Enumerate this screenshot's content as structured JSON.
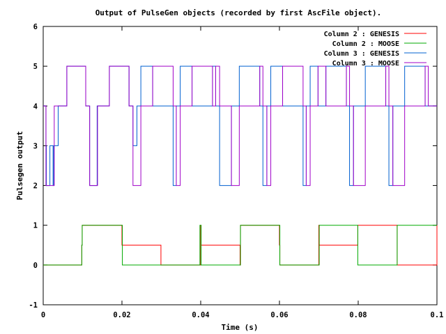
{
  "chart_data": {
    "type": "line",
    "title": "Output of PulseGen objects (recorded by first AscFile object).",
    "xlabel": "Time (s)",
    "ylabel": "Pulsegen output",
    "xlim": [
      0,
      0.1
    ],
    "ylim": [
      -1,
      6
    ],
    "xticks": [
      0,
      0.02,
      0.04,
      0.06,
      0.08,
      0.1
    ],
    "xtick_labels": [
      "0",
      "0.02",
      "0.04",
      "0.06",
      "0.08",
      "0.1"
    ],
    "yticks": [
      -1,
      0,
      1,
      2,
      3,
      4,
      5,
      6
    ],
    "ytick_labels": [
      "-1",
      "0",
      "1",
      "2",
      "3",
      "4",
      "5",
      "6"
    ],
    "grid": false,
    "legend_position": "top-right",
    "series": [
      {
        "name": "Column 2 : GENESIS",
        "color": "#ff0000",
        "step": true,
        "x": [
          0,
          0.0098,
          0.0099,
          0.0199,
          0.02,
          0.0299,
          0.04,
          0.0401,
          0.05,
          0.0501,
          0.06,
          0.0601,
          0.07,
          0.0701,
          0.0799,
          0.0899,
          0.1
        ],
        "y": [
          0,
          0.5,
          1,
          1,
          0.5,
          0,
          1,
          0.5,
          0,
          1,
          0.5,
          0,
          1,
          0.5,
          1,
          0,
          1
        ]
      },
      {
        "name": "Column 2 : MOOSE",
        "color": "#00aa00",
        "step": true,
        "x": [
          0,
          0.0098,
          0.0099,
          0.0199,
          0.0201,
          0.0299,
          0.0398,
          0.0401,
          0.0498,
          0.0501,
          0.0598,
          0.0601,
          0.0698,
          0.0701,
          0.0799,
          0.0899,
          0.1
        ],
        "y": [
          0,
          0.5,
          1,
          1,
          0,
          0,
          1,
          0,
          0,
          1,
          1,
          0,
          0,
          1,
          0,
          1,
          1
        ]
      },
      {
        "name": "Column 3 : GENESIS",
        "color": "#0060d0",
        "step": true,
        "x": [
          0,
          0.0007,
          0.0008,
          0.0017,
          0.0025,
          0.0027,
          0.0038,
          0.006,
          0.0108,
          0.0118,
          0.0137,
          0.0168,
          0.0218,
          0.0228,
          0.0238,
          0.0248,
          0.0278,
          0.033,
          0.0338,
          0.0348,
          0.0378,
          0.043,
          0.0438,
          0.0448,
          0.0478,
          0.0498,
          0.055,
          0.0558,
          0.0568,
          0.0578,
          0.0608,
          0.066,
          0.0668,
          0.0678,
          0.0698,
          0.0718,
          0.077,
          0.0778,
          0.0788,
          0.0818,
          0.087,
          0.0878,
          0.0888,
          0.0918,
          0.097,
          0.0978,
          0.0988
        ],
        "y": [
          4,
          3,
          2,
          3,
          2,
          3,
          4,
          5,
          4,
          2,
          4,
          5,
          4,
          3,
          4,
          5,
          4,
          2,
          4,
          5,
          4,
          5,
          4,
          2,
          4,
          5,
          4,
          2,
          4,
          5,
          4,
          2,
          4,
          5,
          4,
          5,
          4,
          2,
          4,
          5,
          4,
          2,
          4,
          5,
          4,
          4,
          4
        ]
      },
      {
        "name": "Column 3 : MOOSE",
        "color": "#a000c8",
        "step": true,
        "x": [
          0,
          0.0007,
          0.0017,
          0.0025,
          0.0028,
          0.006,
          0.0108,
          0.0118,
          0.0138,
          0.0168,
          0.0218,
          0.0228,
          0.0248,
          0.0278,
          0.033,
          0.0338,
          0.0348,
          0.0378,
          0.043,
          0.0438,
          0.0448,
          0.0478,
          0.0498,
          0.055,
          0.0558,
          0.0568,
          0.0578,
          0.0608,
          0.066,
          0.0668,
          0.0678,
          0.0698,
          0.0718,
          0.077,
          0.0778,
          0.0788,
          0.0818,
          0.087,
          0.0878,
          0.0888,
          0.0918,
          0.097,
          0.0978,
          0.0988
        ],
        "y": [
          4,
          2,
          2,
          2,
          4,
          5,
          4,
          2,
          4,
          5,
          4,
          2,
          4,
          5,
          4,
          2,
          4,
          5,
          4,
          5,
          4,
          2,
          4,
          5,
          4,
          2,
          4,
          5,
          4,
          2,
          4,
          5,
          4,
          5,
          4,
          2,
          4,
          5,
          4,
          2,
          4,
          5,
          4,
          4
        ]
      }
    ]
  }
}
